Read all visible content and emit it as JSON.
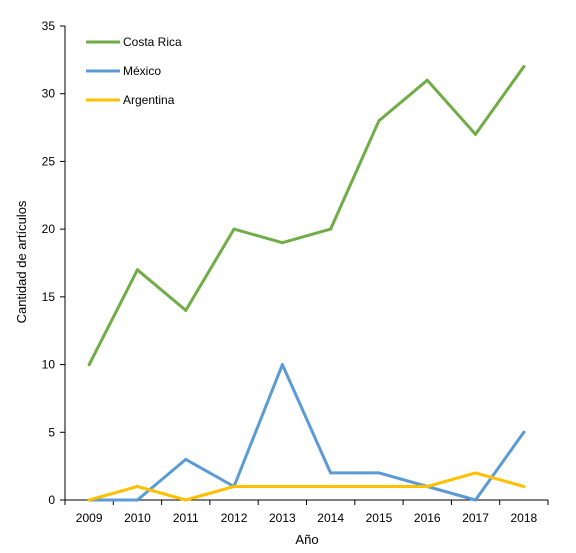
{
  "chart_data": {
    "type": "line",
    "title": "",
    "xlabel": "Año",
    "ylabel": "Cantidad de artículos",
    "x": [
      "2009",
      "2010",
      "2011",
      "2012",
      "2013",
      "2014",
      "2015",
      "2016",
      "2017",
      "2018"
    ],
    "ylim": [
      0,
      35
    ],
    "yticks": [
      0,
      5,
      10,
      15,
      20,
      25,
      30,
      35
    ],
    "grid": false,
    "legend_position": "top-left",
    "series": [
      {
        "name": "Costa Rica",
        "color": "#70ad47",
        "values": [
          10,
          17,
          14,
          20,
          19,
          20,
          28,
          31,
          27,
          32
        ]
      },
      {
        "name": "México",
        "color": "#5b9bd5",
        "values": [
          0,
          0,
          3,
          1,
          10,
          2,
          2,
          1,
          0,
          5
        ]
      },
      {
        "name": "Argentina",
        "color": "#ffc000",
        "values": [
          0,
          1,
          0,
          1,
          1,
          1,
          1,
          1,
          2,
          1
        ]
      }
    ]
  }
}
